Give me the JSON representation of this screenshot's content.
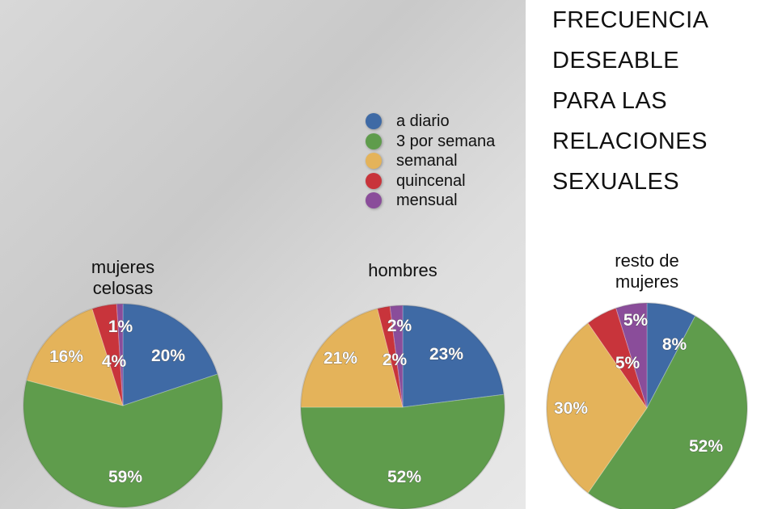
{
  "title_lines": [
    "FRECUENCIA",
    "DESEABLE",
    "PARA LAS",
    "RELACIONES",
    "SEXUALES"
  ],
  "chart_data": [
    {
      "type": "pie",
      "title": "mujeres celosas",
      "categories": [
        "a diario",
        "3 por semana",
        "semanal",
        "quincenal",
        "mensual"
      ],
      "values": [
        20,
        59,
        16,
        4,
        1
      ],
      "labels": [
        "20%",
        "59%",
        "16%",
        "4%",
        "1%"
      ]
    },
    {
      "type": "pie",
      "title": "hombres",
      "categories": [
        "a diario",
        "3 por semana",
        "semanal",
        "quincenal",
        "mensual"
      ],
      "values": [
        23,
        52,
        21,
        2,
        2
      ],
      "labels": [
        "23%",
        "52%",
        "21%",
        "2%",
        "2%"
      ]
    },
    {
      "type": "pie",
      "title": "resto de mujeres",
      "categories": [
        "a diario",
        "3 por semana",
        "semanal",
        "quincenal",
        "mensual"
      ],
      "values": [
        8,
        52,
        30,
        5,
        5
      ],
      "labels": [
        "8%",
        "52%",
        "30%",
        "5%",
        "5%"
      ]
    }
  ],
  "legend": [
    {
      "label": "a diario",
      "color": "#3f6aa5"
    },
    {
      "label": "3 por semana",
      "color": "#5f9c4c"
    },
    {
      "label": "semanal",
      "color": "#e4b35a"
    },
    {
      "label": "quincenal",
      "color": "#c8343b"
    },
    {
      "label": "mensual",
      "color": "#8a4d9a"
    }
  ],
  "pie_titles": [
    [
      "mujeres",
      "celosas"
    ],
    [
      "hombres"
    ],
    [
      "resto de",
      "mujeres"
    ]
  ]
}
